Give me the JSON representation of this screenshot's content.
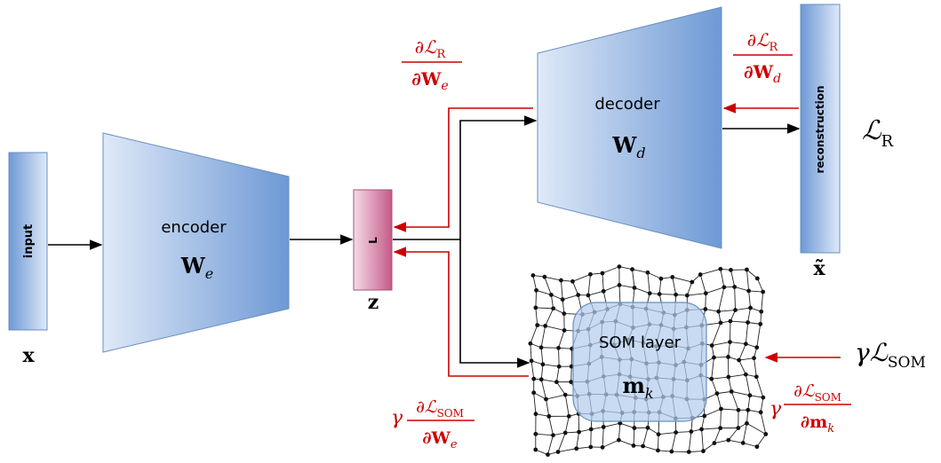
{
  "blocks": {
    "input": "input",
    "encoder": "encoder",
    "latent": "L",
    "decoder": "decoder",
    "reconstruction": "reconstruction",
    "som": "SOM layer"
  },
  "symbols": {
    "x": "x",
    "We_base": "W",
    "We_sub": "e",
    "z": "z",
    "Wd_base": "W",
    "Wd_sub": "d",
    "x_tilde": "x̃",
    "mk_base": "m",
    "mk_sub": "k",
    "LR_base": "ℒ",
    "LR_sub": "R",
    "gamma_LSOM": "γℒ",
    "LSOM_sub": "SOM"
  },
  "gradients": {
    "dLR_dWe": {
      "num": "∂ℒ",
      "num_sub": "R",
      "den": "∂W",
      "den_sub": "e"
    },
    "dLR_dWd": {
      "num": "∂ℒ",
      "num_sub": "R",
      "den": "∂W",
      "den_sub": "d"
    },
    "dLSOM_dWe": {
      "prefix": "γ",
      "num": "∂ℒ",
      "num_sub": "SOM",
      "den": "∂W",
      "den_sub": "e"
    },
    "dLSOM_dmk": {
      "prefix": "γ",
      "num": "∂ℒ",
      "num_sub": "SOM",
      "den": "∂m",
      "den_sub": "k"
    }
  },
  "colors": {
    "gradient": "#cc0000",
    "forward": "#000000",
    "block_dark": "#6f9bd6",
    "block_light": "#dbe7f7",
    "latent_dark": "#c8608c",
    "latent_light": "#f3d8e4"
  }
}
